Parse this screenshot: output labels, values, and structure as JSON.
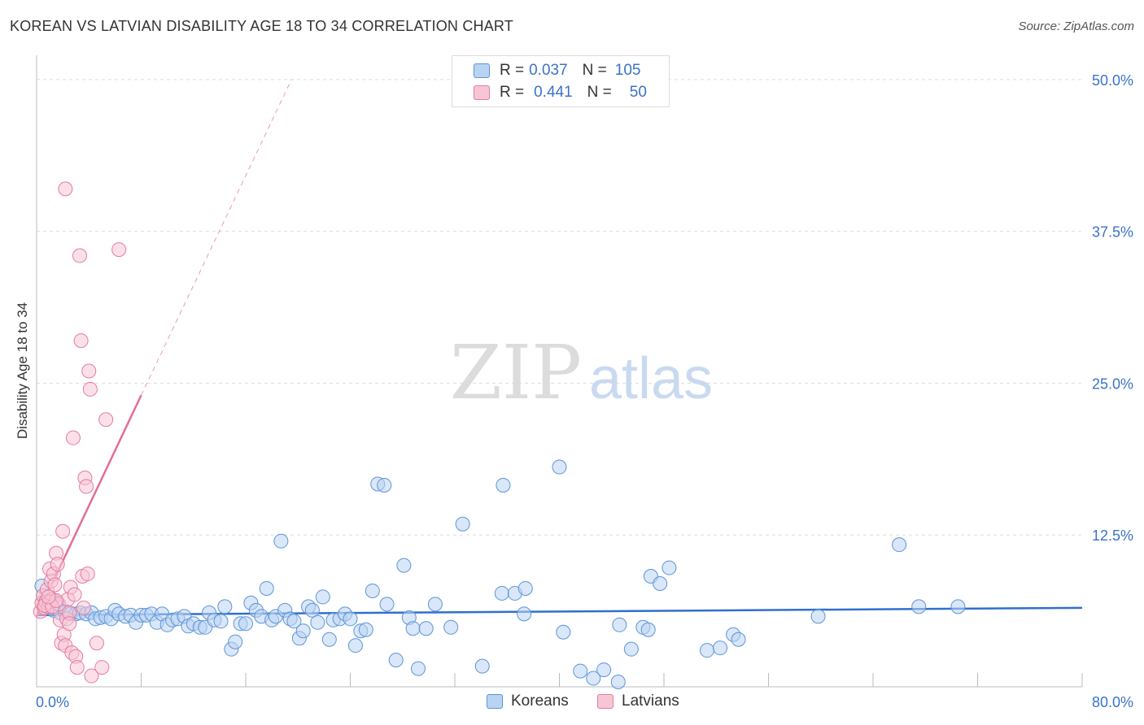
{
  "title": "KOREAN VS LATVIAN DISABILITY AGE 18 TO 34 CORRELATION CHART",
  "source": "Source: ZipAtlas.com",
  "watermark": {
    "zip": "ZIP",
    "atlas": "atlas"
  },
  "legend": {
    "koreans": {
      "r_label": "R =",
      "r_value": "0.037",
      "n_label": "N =",
      "n_value": "105"
    },
    "latvians": {
      "r_label": "R =",
      "r_value": "0.441",
      "n_label": "N =",
      "n_value": "50"
    },
    "bottom_koreans": "Koreans",
    "bottom_latvians": "Latvians"
  },
  "colors": {
    "korean_fill": "#b9d4f2",
    "korean_stroke": "#5d95d6",
    "korean_line": "#2f6fcf",
    "latvian_fill": "#f7c6d5",
    "latvian_stroke": "#e57ba0",
    "latvian_line": "#e46d97",
    "axis_text": "#3a73c8"
  },
  "chart_data": {
    "type": "scatter",
    "title": "KOREAN VS LATVIAN DISABILITY AGE 18 TO 34 CORRELATION CHART",
    "xlabel": "",
    "ylabel": "Disability Age 18 to 34",
    "xlim": [
      0,
      80
    ],
    "ylim": [
      0,
      52
    ],
    "x_tick_labels": [
      "0.0%",
      "80.0%"
    ],
    "y_ticks": [
      12.5,
      25,
      37.5,
      50
    ],
    "y_tick_labels": [
      "12.5%",
      "25.0%",
      "37.5%",
      "50.0%"
    ],
    "series": [
      {
        "name": "Koreans",
        "r": 0.037,
        "n": 105,
        "trend": {
          "x0": 0,
          "y0": 5.9,
          "x1": 80,
          "y1": 6.5
        },
        "points": [
          [
            0.4,
            8.3
          ],
          [
            0.5,
            7.5
          ],
          [
            0.7,
            6.6
          ],
          [
            0.9,
            7.0
          ],
          [
            1.1,
            7.2
          ],
          [
            1.3,
            6.3
          ],
          [
            1.6,
            6.9
          ],
          [
            1.8,
            6.1
          ],
          [
            2.2,
            6.2
          ],
          [
            2.6,
            6.0
          ],
          [
            3.0,
            6.0
          ],
          [
            3.3,
            6.1
          ],
          [
            3.8,
            6.0
          ],
          [
            4.2,
            6.1
          ],
          [
            4.5,
            5.6
          ],
          [
            4.9,
            5.7
          ],
          [
            5.3,
            5.8
          ],
          [
            5.7,
            5.6
          ],
          [
            6.0,
            6.3
          ],
          [
            6.3,
            6.0
          ],
          [
            6.8,
            5.8
          ],
          [
            7.2,
            5.9
          ],
          [
            7.6,
            5.3
          ],
          [
            8.0,
            5.9
          ],
          [
            8.4,
            5.9
          ],
          [
            8.8,
            6.0
          ],
          [
            9.2,
            5.3
          ],
          [
            9.6,
            6.0
          ],
          [
            10.0,
            5.1
          ],
          [
            10.4,
            5.5
          ],
          [
            10.8,
            5.6
          ],
          [
            11.3,
            5.8
          ],
          [
            11.6,
            5.0
          ],
          [
            12.0,
            5.2
          ],
          [
            12.5,
            4.9
          ],
          [
            12.9,
            4.9
          ],
          [
            13.2,
            6.1
          ],
          [
            13.6,
            5.5
          ],
          [
            14.1,
            5.4
          ],
          [
            14.4,
            6.6
          ],
          [
            14.9,
            3.1
          ],
          [
            15.2,
            3.7
          ],
          [
            15.6,
            5.2
          ],
          [
            16.0,
            5.2
          ],
          [
            16.4,
            6.9
          ],
          [
            16.8,
            6.3
          ],
          [
            17.2,
            5.8
          ],
          [
            17.6,
            8.1
          ],
          [
            18.0,
            5.5
          ],
          [
            18.3,
            5.8
          ],
          [
            18.7,
            12.0
          ],
          [
            19.0,
            6.3
          ],
          [
            19.4,
            5.6
          ],
          [
            19.7,
            5.4
          ],
          [
            20.1,
            4.0
          ],
          [
            20.4,
            4.6
          ],
          [
            20.8,
            6.6
          ],
          [
            21.1,
            6.3
          ],
          [
            21.5,
            5.3
          ],
          [
            21.9,
            7.4
          ],
          [
            22.4,
            3.9
          ],
          [
            22.7,
            5.5
          ],
          [
            23.2,
            5.6
          ],
          [
            23.6,
            6.0
          ],
          [
            24.0,
            5.6
          ],
          [
            24.4,
            3.4
          ],
          [
            24.8,
            4.6
          ],
          [
            25.2,
            4.7
          ],
          [
            25.7,
            7.9
          ],
          [
            26.1,
            16.7
          ],
          [
            26.6,
            16.6
          ],
          [
            26.8,
            6.8
          ],
          [
            27.5,
            2.2
          ],
          [
            28.1,
            10.0
          ],
          [
            28.5,
            5.7
          ],
          [
            28.8,
            4.8
          ],
          [
            29.2,
            1.5
          ],
          [
            29.8,
            4.8
          ],
          [
            30.5,
            6.8
          ],
          [
            31.7,
            4.9
          ],
          [
            32.6,
            13.4
          ],
          [
            34.1,
            1.7
          ],
          [
            35.6,
            7.7
          ],
          [
            36.6,
            7.7
          ],
          [
            35.7,
            16.6
          ],
          [
            37.4,
            8.1
          ],
          [
            37.3,
            6.0
          ],
          [
            40.0,
            18.1
          ],
          [
            40.3,
            4.5
          ],
          [
            41.6,
            1.3
          ],
          [
            42.6,
            0.7
          ],
          [
            43.4,
            1.4
          ],
          [
            44.5,
            0.4
          ],
          [
            44.6,
            5.1
          ],
          [
            45.5,
            3.1
          ],
          [
            46.4,
            4.9
          ],
          [
            46.8,
            4.7
          ],
          [
            47.0,
            9.1
          ],
          [
            47.7,
            8.5
          ],
          [
            48.4,
            9.8
          ],
          [
            51.3,
            3.0
          ],
          [
            52.3,
            3.2
          ],
          [
            53.3,
            4.3
          ],
          [
            53.7,
            3.9
          ],
          [
            59.8,
            5.8
          ],
          [
            66.0,
            11.7
          ],
          [
            67.5,
            6.6
          ],
          [
            70.5,
            6.6
          ]
        ]
      },
      {
        "name": "Latvians",
        "r": 0.441,
        "n": 50,
        "trend": {
          "x0": 0,
          "y0": 5.8,
          "x1": 8,
          "y1": 24.0,
          "extend_to": {
            "x": 19.5,
            "y": 50.0
          }
        },
        "points": [
          [
            0.3,
            6.2
          ],
          [
            0.4,
            6.9
          ],
          [
            0.5,
            7.5
          ],
          [
            0.6,
            6.5
          ],
          [
            0.7,
            7.0
          ],
          [
            0.8,
            8.0
          ],
          [
            0.9,
            6.6
          ],
          [
            1.0,
            9.7
          ],
          [
            1.1,
            8.7
          ],
          [
            1.2,
            7.2
          ],
          [
            1.3,
            9.3
          ],
          [
            1.4,
            8.4
          ],
          [
            1.5,
            11.0
          ],
          [
            1.6,
            10.1
          ],
          [
            1.7,
            6.8
          ],
          [
            1.8,
            5.5
          ],
          [
            1.9,
            3.6
          ],
          [
            2.0,
            12.8
          ],
          [
            2.1,
            4.3
          ],
          [
            2.2,
            3.4
          ],
          [
            2.3,
            5.6
          ],
          [
            2.4,
            7.2
          ],
          [
            2.5,
            6.1
          ],
          [
            2.6,
            8.2
          ],
          [
            2.7,
            2.8
          ],
          [
            2.8,
            20.5
          ],
          [
            2.9,
            7.6
          ],
          [
            3.0,
            2.5
          ],
          [
            3.1,
            1.6
          ],
          [
            3.3,
            35.5
          ],
          [
            3.4,
            28.5
          ],
          [
            3.5,
            9.1
          ],
          [
            3.6,
            6.5
          ],
          [
            3.7,
            17.2
          ],
          [
            3.8,
            16.5
          ],
          [
            3.9,
            9.3
          ],
          [
            4.0,
            26.0
          ],
          [
            4.1,
            24.5
          ],
          [
            4.2,
            0.9
          ],
          [
            4.6,
            3.6
          ],
          [
            5.0,
            1.6
          ],
          [
            5.3,
            22.0
          ],
          [
            6.3,
            36.0
          ],
          [
            2.2,
            41.0
          ],
          [
            1.0,
            7.0
          ],
          [
            0.6,
            6.7
          ],
          [
            1.2,
            6.6
          ],
          [
            1.5,
            7.1
          ],
          [
            2.5,
            5.2
          ],
          [
            0.9,
            7.4
          ]
        ]
      }
    ]
  }
}
